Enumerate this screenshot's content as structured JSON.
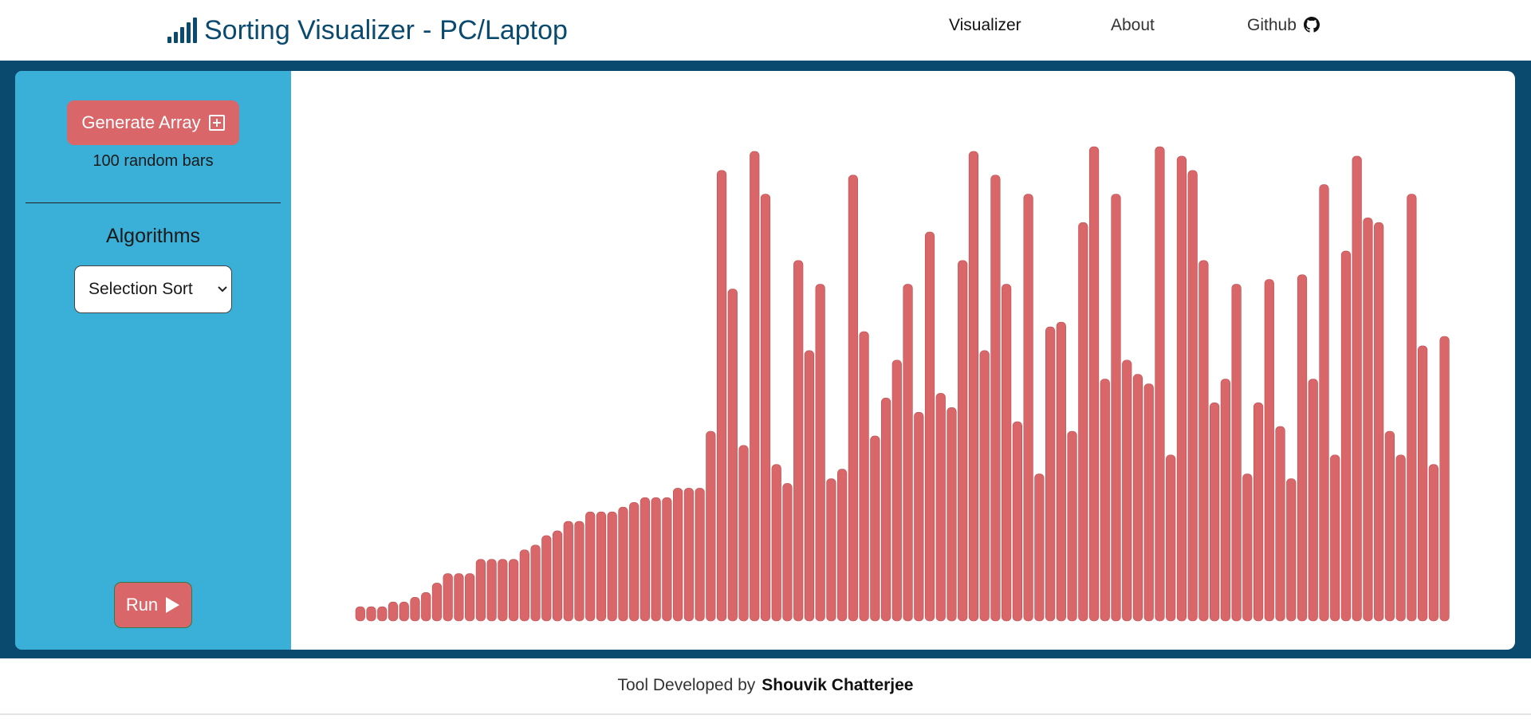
{
  "header": {
    "title": "Sorting Visualizer",
    "separator": "-",
    "subtitle": "PC/Laptop",
    "brand_icon": "signal-bars-icon",
    "nav": [
      {
        "label": "Visualizer",
        "active": true
      },
      {
        "label": "About",
        "active": false
      },
      {
        "label": "Github",
        "icon": "github-icon",
        "active": false
      }
    ]
  },
  "sidebar": {
    "generate_label": "Generate Array",
    "generate_icon": "plus-square-icon",
    "bars_caption": "100 random bars",
    "algorithms_heading": "Algorithms",
    "algorithm_selected": "Selection Sort",
    "run_label": "Run",
    "run_icon": "play-icon"
  },
  "footer": {
    "prefix": "Tool Developed by",
    "author": "Shouvik Chatterjee"
  },
  "colors": {
    "frame": "#0b4a6f",
    "sidebar": "#3aafd7",
    "bar": "#d9676a",
    "brand": "#0b4a6f"
  },
  "chart_data": {
    "type": "bar",
    "title": "",
    "xlabel": "",
    "ylabel": "",
    "ylim": [
      0,
      100
    ],
    "values": [
      3,
      3,
      3,
      4,
      4,
      5,
      6,
      8,
      10,
      10,
      10,
      13,
      13,
      13,
      13,
      15,
      16,
      18,
      19,
      21,
      21,
      23,
      23,
      23,
      24,
      25,
      26,
      26,
      26,
      28,
      28,
      28,
      40,
      95,
      70,
      37,
      99,
      90,
      33,
      29,
      76,
      57,
      71,
      30,
      32,
      94,
      61,
      39,
      47,
      55,
      71,
      44,
      82,
      48,
      45,
      76,
      99,
      57,
      94,
      71,
      42,
      90,
      31,
      62,
      63,
      40,
      84,
      100,
      51,
      90,
      55,
      52,
      50,
      100,
      35,
      98,
      95,
      76,
      46,
      51,
      71,
      31,
      46,
      72,
      41,
      30,
      73,
      51,
      92,
      35,
      78,
      98,
      85,
      84,
      40,
      35,
      90,
      58,
      33,
      60
    ]
  }
}
